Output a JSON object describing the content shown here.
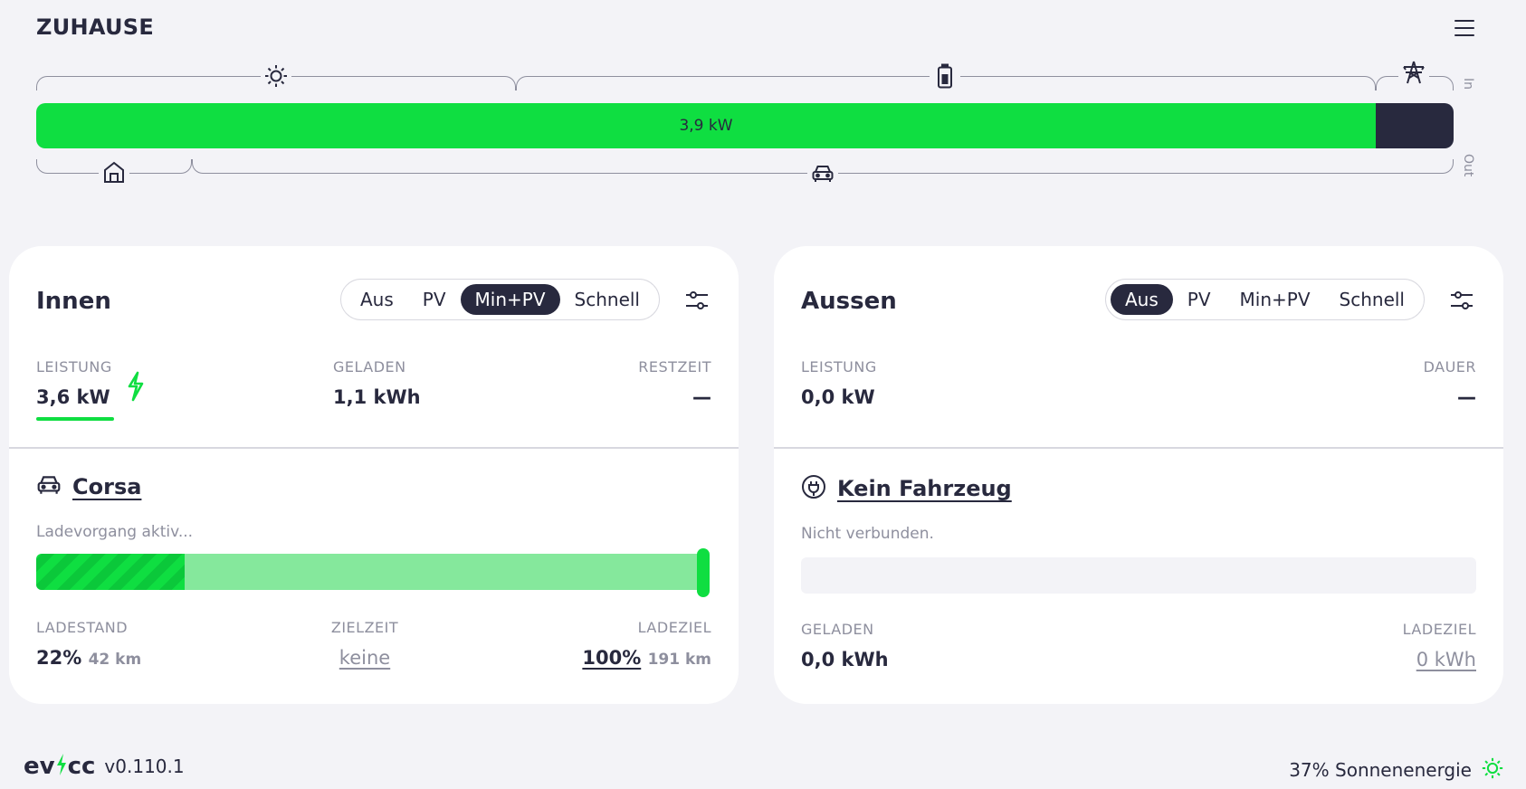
{
  "site": {
    "title": "ZUHAUSE"
  },
  "flow": {
    "bar_label": "3,9 kW",
    "in_label": "In",
    "out_label": "Out",
    "icons": {
      "pv": "sun-icon",
      "battery": "battery-icon",
      "grid": "power-tower-icon",
      "home": "home-icon",
      "vehicle": "car-icon"
    },
    "colors": {
      "pv": "#0fde41",
      "grid": "#28293e"
    }
  },
  "loadpoints": [
    {
      "title": "Innen",
      "modes": [
        "Aus",
        "PV",
        "Min+PV",
        "Schnell"
      ],
      "active_mode": "Min+PV",
      "stats": [
        {
          "label": "LEISTUNG",
          "value": "3,6 kW"
        },
        {
          "label": "GELADEN",
          "value": "1,1 kWh"
        },
        {
          "label": "RESTZEIT",
          "value": "—"
        }
      ],
      "vehicle": {
        "name": "Corsa",
        "icon": "car-icon",
        "status": "Ladevorgang aktiv..."
      },
      "soc": {
        "charged": 0.22,
        "target": 1.0
      },
      "footer": [
        {
          "label": "LADESTAND",
          "value": "22%",
          "sub": "42 km"
        },
        {
          "label": "ZIELZEIT",
          "value": "keine"
        },
        {
          "label": "LADEZIEL",
          "value": "100%",
          "sub": "191 km"
        }
      ]
    },
    {
      "title": "Aussen",
      "modes": [
        "Aus",
        "PV",
        "Min+PV",
        "Schnell"
      ],
      "active_mode": "Aus",
      "stats": [
        {
          "label": "LEISTUNG",
          "value": "0,0 kW"
        },
        {
          "label": "DAUER",
          "value": "—"
        }
      ],
      "vehicle": {
        "name": "Kein Fahrzeug",
        "icon": "plug-icon",
        "status": "Nicht verbunden."
      },
      "footer": [
        {
          "label": "GELADEN",
          "value": "0,0 kWh"
        },
        {
          "label": "LADEZIEL",
          "value": "0 kWh"
        }
      ]
    }
  ],
  "footer": {
    "logo_left": "ev",
    "logo_right": "cc",
    "version": "v0.110.1",
    "solar_share": "37% Sonnenenergie"
  }
}
